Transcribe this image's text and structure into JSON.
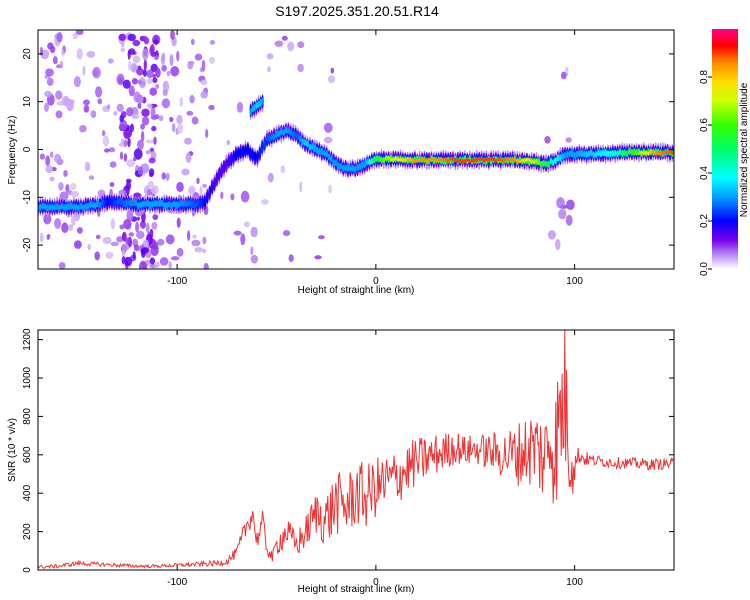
{
  "title": "S197.2025.351.20.51.R14",
  "chart_data": [
    {
      "type": "heatmap",
      "title": "S197.2025.351.20.51.R14",
      "xlabel": "Height of straight line (km)",
      "ylabel": "Frequency (Hz)",
      "xlim": [
        -170,
        150
      ],
      "ylim": [
        -25,
        25
      ],
      "xticks": [
        -100,
        0,
        100
      ],
      "xtick_labels": [
        "-100",
        "0",
        "100"
      ],
      "yticks": [
        -20,
        -10,
        0,
        10,
        20
      ],
      "ytick_labels": [
        "-20",
        "-10",
        "0",
        "10",
        "20"
      ],
      "ridge": {
        "x": [
          -170,
          -160,
          -150,
          -140,
          -135,
          -130,
          -120,
          -110,
          -100,
          -90,
          -86,
          -80,
          -75,
          -70,
          -65,
          -60,
          -55,
          -50,
          -45,
          -40,
          -35,
          -30,
          -25,
          -20,
          -15,
          -10,
          -5,
          0,
          10,
          20,
          30,
          40,
          50,
          60,
          70,
          80,
          85,
          90,
          95,
          100,
          110,
          120,
          130,
          140,
          150
        ],
        "freq": [
          -12,
          -12,
          -12,
          -11.5,
          -11,
          -11,
          -11.5,
          -11.5,
          -11.5,
          -11.5,
          -11,
          -6,
          -3,
          -1,
          0,
          -2,
          2,
          3,
          4,
          3,
          1,
          0,
          -1,
          -3,
          -4,
          -4,
          -3,
          -2,
          -2,
          -2.2,
          -2.2,
          -2.2,
          -2.2,
          -2.2,
          -2.2,
          -2.5,
          -3,
          -2.5,
          -1,
          -1,
          -1,
          -0.8,
          -0.6,
          -0.6,
          -0.6
        ],
        "amplitude": [
          0.3,
          0.3,
          0.3,
          0.3,
          0.2,
          0.25,
          0.3,
          0.3,
          0.3,
          0.25,
          0.2,
          0.15,
          0.15,
          0.2,
          0.2,
          0.2,
          0.25,
          0.3,
          0.3,
          0.25,
          0.35,
          0.3,
          0.3,
          0.3,
          0.3,
          0.3,
          0.3,
          0.55,
          0.75,
          0.85,
          0.85,
          0.9,
          0.9,
          0.9,
          0.85,
          0.7,
          0.55,
          0.4,
          0.3,
          0.3,
          0.35,
          0.4,
          0.6,
          0.85,
          0.9
        ]
      },
      "branch": {
        "x": [
          -63,
          -60,
          -57
        ],
        "freq": [
          8,
          9,
          10
        ],
        "amplitude": [
          0.3,
          0.35,
          0.3
        ]
      },
      "colorbar": {
        "label": "Normalized spectral amplitude",
        "range": [
          0,
          1
        ],
        "ticks": [
          0.0,
          0.2,
          0.4,
          0.6,
          0.8
        ],
        "tick_labels": [
          "0.0",
          "0.2",
          "0.4",
          "0.6",
          "0.8"
        ]
      }
    },
    {
      "type": "line",
      "xlabel": "Height of straight line (km)",
      "ylabel": "SNR (10 * v/v)",
      "xlim": [
        -170,
        150
      ],
      "ylim": [
        0,
        1250
      ],
      "xticks": [
        -100,
        0,
        100
      ],
      "xtick_labels": [
        "-100",
        "0",
        "100"
      ],
      "yticks": [
        0,
        200,
        400,
        600,
        800,
        1000,
        1200
      ],
      "ytick_labels": [
        "0",
        "200",
        "400",
        "600",
        "800",
        "1000",
        "1200"
      ],
      "color": "#ee3333",
      "series": [
        {
          "name": "SNR",
          "x": [
            -170,
            -160,
            -150,
            -140,
            -130,
            -120,
            -110,
            -100,
            -90,
            -80,
            -75,
            -70,
            -65,
            -62,
            -60,
            -57,
            -55,
            -52,
            -50,
            -45,
            -40,
            -35,
            -30,
            -25,
            -20,
            -15,
            -10,
            -5,
            0,
            5,
            10,
            15,
            20,
            25,
            30,
            35,
            40,
            45,
            50,
            55,
            60,
            65,
            70,
            75,
            80,
            85,
            88,
            90,
            92,
            95,
            97,
            99,
            100,
            102,
            105,
            110,
            120,
            130,
            140,
            150
          ],
          "y": [
            15,
            20,
            35,
            30,
            25,
            20,
            20,
            25,
            30,
            35,
            45,
            90,
            230,
            300,
            150,
            250,
            120,
            60,
            130,
            200,
            130,
            200,
            300,
            260,
            350,
            330,
            400,
            380,
            430,
            450,
            480,
            520,
            560,
            580,
            600,
            620,
            640,
            620,
            630,
            620,
            610,
            600,
            600,
            620,
            640,
            580,
            700,
            600,
            750,
            900,
            700,
            600,
            540,
            600,
            580,
            570,
            560,
            555,
            550,
            555
          ],
          "variability": [
            8,
            10,
            12,
            10,
            10,
            8,
            8,
            10,
            12,
            15,
            20,
            30,
            60,
            60,
            50,
            60,
            40,
            30,
            60,
            80,
            70,
            90,
            120,
            150,
            170,
            160,
            180,
            170,
            160,
            160,
            150,
            140,
            130,
            120,
            110,
            100,
            90,
            80,
            80,
            90,
            110,
            130,
            160,
            190,
            220,
            250,
            280,
            320,
            380,
            400,
            350,
            250,
            80,
            50,
            40,
            30,
            30,
            30,
            30,
            30
          ]
        }
      ]
    }
  ]
}
